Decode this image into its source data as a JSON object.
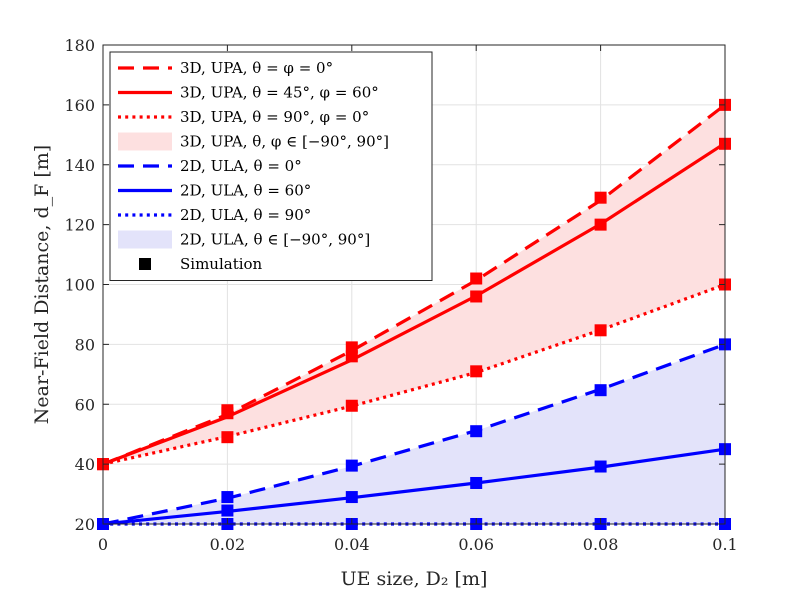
{
  "chart_data": {
    "type": "line",
    "title": "",
    "xlabel": "UE size, D₂ [m]",
    "ylabel": "Near-Field Distance, d_F [m]",
    "xlim": [
      0,
      0.1
    ],
    "ylim": [
      20,
      180
    ],
    "grid": true,
    "legend_position": "top-left",
    "x": [
      0,
      0.02,
      0.04,
      0.06,
      0.08,
      0.1
    ],
    "x_tick_labels": [
      "0",
      "0.02",
      "0.04",
      "0.06",
      "0.08",
      "0.1"
    ],
    "y_ticks": [
      20,
      40,
      60,
      80,
      100,
      120,
      140,
      160,
      180
    ],
    "y_tick_labels": [
      "20",
      "40",
      "60",
      "80",
      "100",
      "120",
      "140",
      "160",
      "180"
    ],
    "series": [
      {
        "name": "3D, UPA, θ = φ = 0°",
        "color": "#ff0000",
        "style": "dashed",
        "values": [
          40,
          56.6,
          77.9,
          101.4,
          128.1,
          160
        ],
        "sim": [
          40,
          58,
          79,
          102,
          129,
          160
        ]
      },
      {
        "name": "3D, UPA, θ = 45°, φ = 60°",
        "color": "#ff0000",
        "style": "solid",
        "values": [
          40,
          55.8,
          74.8,
          96.2,
          120.2,
          147.2
        ],
        "sim": [
          40,
          57,
          76,
          96,
          120,
          147
        ]
      },
      {
        "name": "3D, UPA, θ = 90°, φ = 0°",
        "color": "#ff0000",
        "style": "dotted",
        "values": [
          40,
          49.2,
          59.4,
          70.6,
          84.8,
          100
        ],
        "sim": [
          40,
          49,
          59.5,
          71,
          84.7,
          100
        ]
      },
      {
        "name": "2D, ULA, θ = 0°",
        "color": "#0000ff",
        "style": "dashed",
        "values": [
          20,
          28.6,
          39.3,
          51.2,
          65,
          80
        ],
        "sim": [
          20,
          29,
          39.5,
          51,
          64.7,
          80
        ]
      },
      {
        "name": "2D, ULA, θ = 60°",
        "color": "#0000ff",
        "style": "solid",
        "values": [
          20,
          24.2,
          28.8,
          33.7,
          39,
          45
        ],
        "sim": [
          20,
          24.5,
          29,
          33.7,
          39.2,
          45
        ]
      },
      {
        "name": "2D, ULA, θ = 90°",
        "color": "#0000ff",
        "style": "dotted",
        "values": [
          20,
          20,
          20,
          20,
          20,
          20
        ],
        "sim": [
          20,
          20,
          20,
          20,
          20,
          20
        ]
      }
    ],
    "bands": [
      {
        "name": "3D, UPA, θ, φ ∈ [−90°, 90°]",
        "color": "#fde0e0",
        "upper": [
          40,
          56.6,
          77.9,
          101.4,
          128.1,
          160
        ],
        "lower": [
          40,
          49.2,
          59.4,
          70.6,
          84.8,
          100
        ]
      },
      {
        "name": "2D, ULA, θ ∈ [−90°, 90°]",
        "color": "#e3e3fa",
        "upper": [
          20,
          28.6,
          39.3,
          51.2,
          65,
          80
        ],
        "lower": [
          20,
          20,
          20,
          20,
          20,
          20
        ]
      }
    ],
    "legend": [
      {
        "label": "3D, UPA, θ = φ = 0°",
        "kind": "line",
        "color": "#ff0000",
        "style": "dashed"
      },
      {
        "label": "3D, UPA, θ = 45°, φ = 60°",
        "kind": "line",
        "color": "#ff0000",
        "style": "solid"
      },
      {
        "label": "3D, UPA, θ = 90°, φ = 0°",
        "kind": "line",
        "color": "#ff0000",
        "style": "dotted"
      },
      {
        "label": "3D, UPA, θ, φ ∈ [−90°, 90°]",
        "kind": "patch",
        "color": "#fde0e0"
      },
      {
        "label": "2D, ULA, θ = 0°",
        "kind": "line",
        "color": "#0000ff",
        "style": "dashed"
      },
      {
        "label": "2D, ULA, θ = 60°",
        "kind": "line",
        "color": "#0000ff",
        "style": "solid"
      },
      {
        "label": "2D, ULA, θ = 90°",
        "kind": "line",
        "color": "#0000ff",
        "style": "dotted"
      },
      {
        "label": "2D, ULA, θ ∈ [−90°, 90°]",
        "kind": "patch",
        "color": "#e3e3fa"
      },
      {
        "label": "Simulation",
        "kind": "marker",
        "color": "#000000"
      }
    ]
  }
}
